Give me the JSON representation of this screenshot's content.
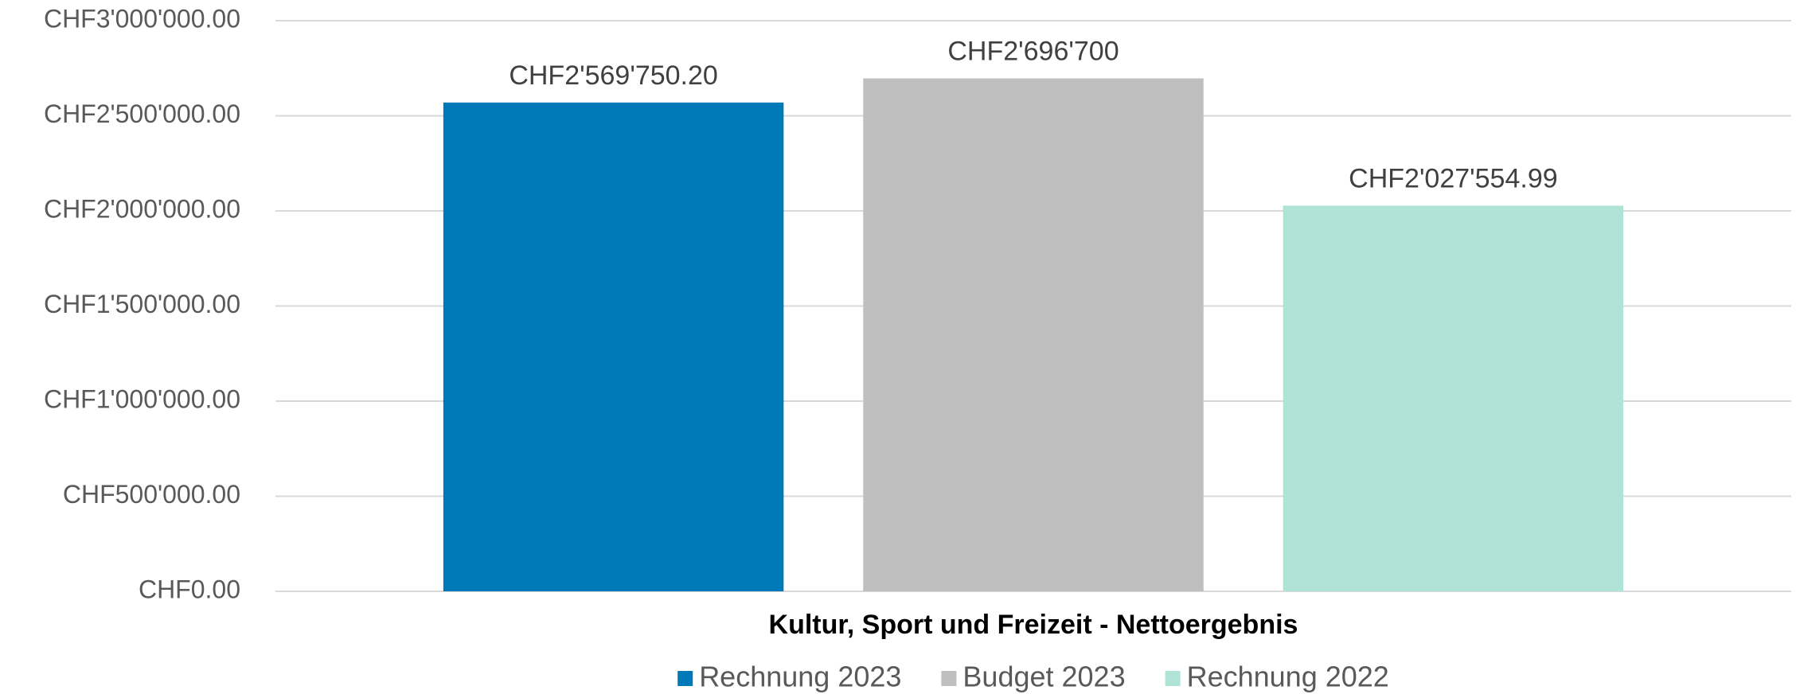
{
  "chart_data": {
    "type": "bar",
    "categories": [
      "Kultur, Sport und Freizeit - Nettoergebnis"
    ],
    "series": [
      {
        "name": "Rechnung 2023",
        "color": "#0079b8",
        "values": [
          2569750.2
        ],
        "value_labels": [
          "CHF2'569'750.20"
        ]
      },
      {
        "name": "Budget 2023",
        "color": "#bfbfbf",
        "values": [
          2696700
        ],
        "value_labels": [
          "CHF2'696'700"
        ]
      },
      {
        "name": "Rechnung 2022",
        "color": "#aee3d6",
        "values": [
          2027554.99
        ],
        "value_labels": [
          "CHF2'027'554.99"
        ]
      }
    ],
    "ylim": [
      0,
      3000000
    ],
    "yticks": [
      {
        "value": 0,
        "label": "CHF0.00"
      },
      {
        "value": 500000,
        "label": "CHF500'000.00"
      },
      {
        "value": 1000000,
        "label": "CHF1'000'000.00"
      },
      {
        "value": 1500000,
        "label": "CHF1'500'000.00"
      },
      {
        "value": 2000000,
        "label": "CHF2'000'000.00"
      },
      {
        "value": 2500000,
        "label": "CHF2'500'000.00"
      },
      {
        "value": 3000000,
        "label": "CHF3'000'000.00"
      }
    ],
    "grid": true,
    "legend": "bottom"
  }
}
